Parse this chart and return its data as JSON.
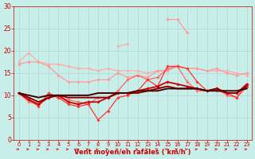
{
  "xlabel": "Vent moyen/en rafales ( km/h )",
  "xlim": [
    -0.5,
    23.5
  ],
  "ylim": [
    0,
    30
  ],
  "yticks": [
    0,
    5,
    10,
    15,
    20,
    25,
    30
  ],
  "xticks": [
    0,
    1,
    2,
    3,
    4,
    5,
    6,
    7,
    8,
    9,
    10,
    11,
    12,
    13,
    14,
    15,
    16,
    17,
    18,
    19,
    20,
    21,
    22,
    23
  ],
  "bg_color": "#c8eeea",
  "grid_color": "#aadddd",
  "lines": [
    {
      "y": [
        17.5,
        19.5,
        17.5,
        17.0,
        17.0,
        16.5,
        16.0,
        16.0,
        15.5,
        16.0,
        15.5,
        15.5,
        15.5,
        15.0,
        15.5,
        15.5,
        16.5,
        16.0,
        16.0,
        15.5,
        15.5,
        15.5,
        15.0,
        14.5
      ],
      "color": "#ffaaaa",
      "lw": 0.9,
      "marker": "D",
      "ms": 1.8,
      "zorder": 3
    },
    {
      "y": [
        17.0,
        17.5,
        17.5,
        16.5,
        14.5,
        13.0,
        13.0,
        13.0,
        13.5,
        13.5,
        15.0,
        14.0,
        14.5,
        14.0,
        15.5,
        15.5,
        16.5,
        16.0,
        16.0,
        15.5,
        16.0,
        15.0,
        14.5,
        15.0
      ],
      "color": "#ff9999",
      "lw": 0.9,
      "marker": "D",
      "ms": 1.8,
      "zorder": 3
    },
    {
      "y": [
        10.5,
        8.5,
        8.0,
        10.0,
        9.5,
        9.0,
        8.5,
        8.0,
        9.5,
        9.5,
        11.0,
        13.5,
        14.5,
        13.5,
        14.0,
        16.0,
        16.5,
        13.0,
        11.0,
        11.0,
        11.5,
        10.0,
        9.5,
        12.5
      ],
      "color": "#ff6666",
      "lw": 0.9,
      "marker": "D",
      "ms": 1.8,
      "zorder": 4
    },
    {
      "y": [
        10.5,
        9.0,
        7.5,
        10.5,
        9.5,
        8.0,
        7.5,
        8.0,
        4.5,
        6.5,
        9.5,
        10.0,
        11.0,
        13.5,
        12.0,
        16.5,
        16.5,
        16.0,
        13.0,
        11.0,
        11.0,
        10.5,
        9.5,
        12.0
      ],
      "color": "#ff3333",
      "lw": 0.9,
      "marker": "D",
      "ms": 1.8,
      "zorder": 4
    },
    {
      "y": [
        10.5,
        9.0,
        8.0,
        9.5,
        10.0,
        8.5,
        8.0,
        8.5,
        8.5,
        9.5,
        10.5,
        10.5,
        11.0,
        11.5,
        12.0,
        13.0,
        12.5,
        12.0,
        11.5,
        11.0,
        11.5,
        10.5,
        10.5,
        12.5
      ],
      "color": "#cc0000",
      "lw": 1.3,
      "marker": "D",
      "ms": 1.8,
      "zorder": 5
    },
    {
      "y": [
        10.5,
        9.5,
        8.5,
        9.5,
        10.0,
        9.5,
        9.5,
        9.5,
        9.5,
        9.5,
        10.5,
        10.5,
        10.5,
        11.0,
        11.5,
        12.0,
        11.5,
        11.5,
        11.5,
        11.0,
        11.5,
        10.5,
        10.5,
        12.0
      ],
      "color": "#880000",
      "lw": 1.4,
      "marker": null,
      "ms": 0,
      "zorder": 6
    },
    {
      "y": [
        10.5,
        10.0,
        9.5,
        10.0,
        10.0,
        10.0,
        10.0,
        10.0,
        10.5,
        10.5,
        10.5,
        10.5,
        11.0,
        11.0,
        11.0,
        11.5,
        11.5,
        11.5,
        11.5,
        11.0,
        11.0,
        11.0,
        11.0,
        11.5
      ],
      "color": "#440000",
      "lw": 1.4,
      "marker": null,
      "ms": 0,
      "zorder": 6
    }
  ],
  "partial_lines": [
    {
      "x": [
        15,
        16,
        17
      ],
      "y": [
        27.0,
        27.0,
        24.0
      ],
      "color": "#ff9999",
      "lw": 0.9,
      "marker": "D",
      "ms": 1.8,
      "zorder": 3
    },
    {
      "x": [
        10,
        11
      ],
      "y": [
        21.0,
        21.5
      ],
      "color": "#ffaaaa",
      "lw": 0.9,
      "marker": "D",
      "ms": 1.8,
      "zorder": 3
    }
  ],
  "arrow_color": "#cc0000"
}
